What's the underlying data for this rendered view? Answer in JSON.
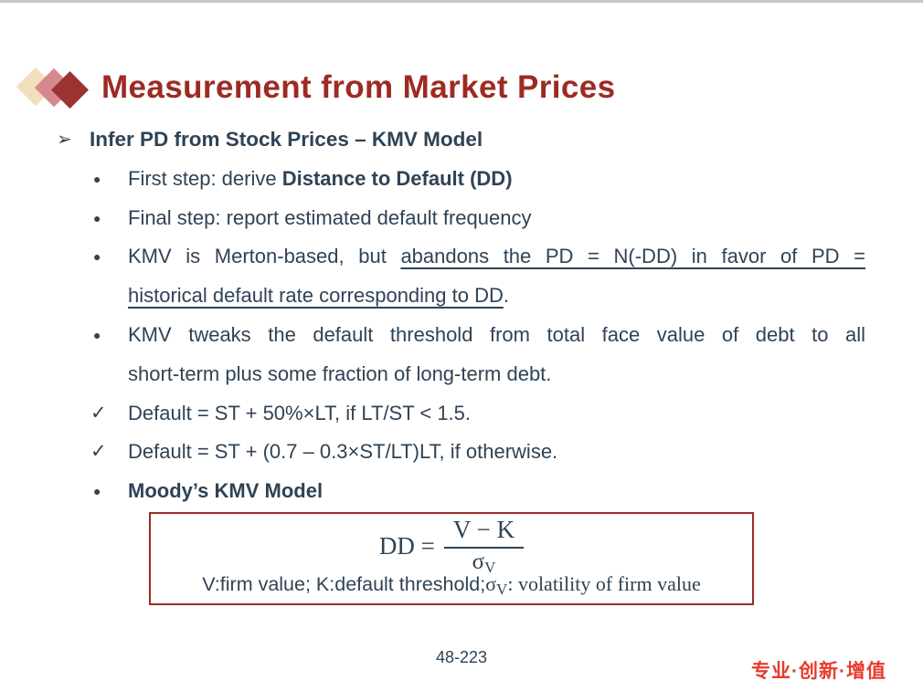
{
  "slide": {
    "title": "Measurement from Market Prices",
    "page_number": "48-223",
    "slogan": "专业·创新·增值"
  },
  "markers": {
    "arrow": "➢",
    "dot": "●",
    "check": "✓",
    "none": ""
  },
  "bullets": [
    {
      "marker": "arrow",
      "stretch": false,
      "segments": [
        {
          "text": "Infer PD from Stock Prices – KMV Model",
          "bold": true
        }
      ]
    },
    {
      "marker": "dot",
      "stretch": false,
      "segments": [
        {
          "text": "First step: derive "
        },
        {
          "text": "Distance to Default (DD)",
          "bold": true
        }
      ]
    },
    {
      "marker": "dot",
      "stretch": false,
      "segments": [
        {
          "text": "Final step: report estimated default frequency"
        }
      ]
    },
    {
      "marker": "dot",
      "stretch": true,
      "segments": [
        {
          "text": "KMV is Merton-based, but "
        },
        {
          "text": "abandons the PD = N(-DD) in favor of PD =",
          "underline": true
        }
      ]
    },
    {
      "marker": "none",
      "stretch": false,
      "segments": [
        {
          "text": "historical default rate corresponding to DD",
          "underline": true
        },
        {
          "text": "."
        }
      ]
    },
    {
      "marker": "dot",
      "stretch": true,
      "segments": [
        {
          "text": "KMV tweaks the default threshold from total face value of debt to all"
        }
      ]
    },
    {
      "marker": "none",
      "stretch": false,
      "segments": [
        {
          "text": "short-term plus some fraction of long-term debt."
        }
      ]
    },
    {
      "marker": "check",
      "stretch": false,
      "segments": [
        {
          "text": "Default = ST + 50%×LT, if LT/ST < 1.5."
        }
      ]
    },
    {
      "marker": "check",
      "stretch": false,
      "segments": [
        {
          "text": "Default = ST + (0.7 – 0.3×ST/LT)LT, if otherwise."
        }
      ]
    },
    {
      "marker": "dot",
      "stretch": false,
      "segments": [
        {
          "text": "Moody’s KMV Model",
          "bold": true
        }
      ]
    }
  ],
  "formula": {
    "lhs": "DD",
    "equals": "=",
    "numerator": "V − K",
    "den_sigma": "σ",
    "den_sub": "V",
    "desc_sans": "V:firm value; K:default threshold;",
    "desc_sigma": "σ",
    "desc_sub": "V",
    "desc_rest": ": volatility of firm value"
  },
  "colors": {
    "accent_red": "#9c2b23",
    "body_text": "#2f4356",
    "slogan_red": "#e93a2c",
    "diamond_cream": "#f2e0bd",
    "diamond_rose": "#d5898d",
    "diamond_red": "#9c3332"
  }
}
